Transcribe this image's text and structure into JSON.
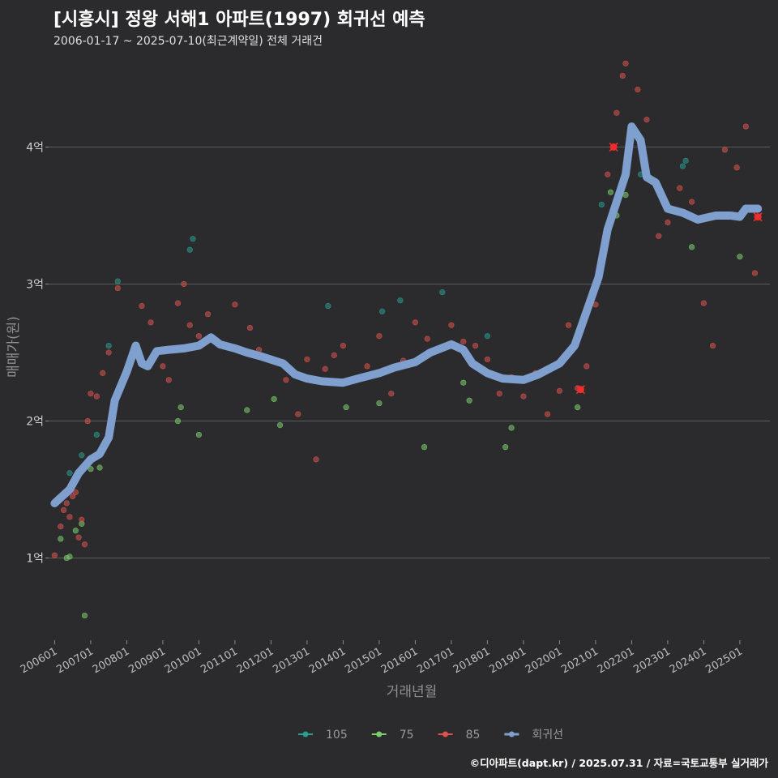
{
  "header": {
    "title": "[시흥시] 정왕 서해1 아파트(1997) 회귀선 예측",
    "subtitle": "2006-01-17 ~ 2025-07-10(최근계약일) 전체 거래건"
  },
  "footer": {
    "credit": "©디아파트(dapt.kr) / 2025.07.31 / 자료=국토교통부 실거래가"
  },
  "chart_data": {
    "type": "scatter",
    "xlabel": "거래년월",
    "ylabel": "매매가(원)",
    "x_range": [
      "2005-11",
      "2025-11"
    ],
    "ylim": [
      0.4,
      4.6
    ],
    "y_ticks": [
      1,
      2,
      3,
      4
    ],
    "y_tick_labels": [
      "1억",
      "2억",
      "3억",
      "4억"
    ],
    "x_ticks": [
      "2006-01",
      "2007-01",
      "2008-01",
      "2009-01",
      "2010-01",
      "2011-01",
      "2012-01",
      "2013-01",
      "2014-01",
      "2015-01",
      "2016-01",
      "2017-01",
      "2018-01",
      "2019-01",
      "2020-01",
      "2021-01",
      "2022-01",
      "2023-01",
      "2024-01",
      "2025-01"
    ],
    "x_tick_labels": [
      "200601",
      "200701",
      "200801",
      "200901",
      "201001",
      "201101",
      "201201",
      "201301",
      "201401",
      "201501",
      "201601",
      "201701",
      "201801",
      "201901",
      "202001",
      "202101",
      "202201",
      "202301",
      "202401",
      "202501"
    ],
    "grid": "horizontal",
    "legend_position": "bottom",
    "colors": {
      "105": "#2a9d8f",
      "75": "#7ccf6b",
      "85": "#d9534f",
      "회귀선": "#7f9fcf",
      "background": "#2b2b2d"
    },
    "series": [
      {
        "name": "105",
        "kind": "points",
        "values": [
          [
            "2006-06",
            1.62
          ],
          [
            "2006-10",
            1.75
          ],
          [
            "2007-03",
            1.9
          ],
          [
            "2007-07",
            2.55
          ],
          [
            "2007-10",
            3.02
          ],
          [
            "2009-10",
            3.25
          ],
          [
            "2009-11",
            3.33
          ],
          [
            "2013-08",
            2.84
          ],
          [
            "2015-02",
            2.8
          ],
          [
            "2015-08",
            2.88
          ],
          [
            "2016-10",
            2.94
          ],
          [
            "2018-01",
            2.62
          ],
          [
            "2021-03",
            3.58
          ],
          [
            "2022-04",
            3.8
          ],
          [
            "2023-06",
            3.86
          ],
          [
            "2023-07",
            3.9
          ]
        ]
      },
      {
        "name": "75",
        "kind": "points",
        "values": [
          [
            "2006-03",
            1.14
          ],
          [
            "2006-05",
            1.0
          ],
          [
            "2006-06",
            1.01
          ],
          [
            "2006-08",
            1.2
          ],
          [
            "2006-10",
            1.25
          ],
          [
            "2006-11",
            0.58
          ],
          [
            "2007-01",
            1.65
          ],
          [
            "2007-04",
            1.66
          ],
          [
            "2009-06",
            2.0
          ],
          [
            "2009-07",
            2.1
          ],
          [
            "2010-01",
            1.9
          ],
          [
            "2011-05",
            2.08
          ],
          [
            "2012-02",
            2.16
          ],
          [
            "2012-04",
            1.97
          ],
          [
            "2014-02",
            2.1
          ],
          [
            "2015-01",
            2.13
          ],
          [
            "2016-04",
            1.81
          ],
          [
            "2017-05",
            2.28
          ],
          [
            "2017-07",
            2.15
          ],
          [
            "2018-07",
            1.81
          ],
          [
            "2018-09",
            1.95
          ],
          [
            "2020-07",
            2.1
          ],
          [
            "2021-06",
            3.67
          ],
          [
            "2021-08",
            3.5
          ],
          [
            "2021-11",
            3.65
          ],
          [
            "2023-09",
            3.27
          ],
          [
            "2025-01",
            3.2
          ]
        ]
      },
      {
        "name": "85",
        "kind": "points",
        "values": [
          [
            "2006-01",
            1.02
          ],
          [
            "2006-03",
            1.23
          ],
          [
            "2006-04",
            1.35
          ],
          [
            "2006-05",
            1.4
          ],
          [
            "2006-06",
            1.3
          ],
          [
            "2006-07",
            1.45
          ],
          [
            "2006-08",
            1.48
          ],
          [
            "2006-09",
            1.15
          ],
          [
            "2006-10",
            1.28
          ],
          [
            "2006-11",
            1.1
          ],
          [
            "2006-12",
            2.0
          ],
          [
            "2007-01",
            2.2
          ],
          [
            "2007-03",
            2.18
          ],
          [
            "2007-05",
            2.35
          ],
          [
            "2007-07",
            2.5
          ],
          [
            "2007-10",
            2.97
          ],
          [
            "2008-06",
            2.84
          ],
          [
            "2008-09",
            2.72
          ],
          [
            "2009-01",
            2.4
          ],
          [
            "2009-03",
            2.3
          ],
          [
            "2009-06",
            2.86
          ],
          [
            "2009-08",
            3.0
          ],
          [
            "2009-10",
            2.7
          ],
          [
            "2010-01",
            2.62
          ],
          [
            "2010-04",
            2.78
          ],
          [
            "2010-08",
            2.55
          ],
          [
            "2011-01",
            2.85
          ],
          [
            "2011-06",
            2.68
          ],
          [
            "2011-09",
            2.52
          ],
          [
            "2012-01",
            2.45
          ],
          [
            "2012-06",
            2.3
          ],
          [
            "2012-10",
            2.05
          ],
          [
            "2013-01",
            2.45
          ],
          [
            "2013-04",
            1.72
          ],
          [
            "2013-07",
            2.38
          ],
          [
            "2013-10",
            2.48
          ],
          [
            "2014-01",
            2.55
          ],
          [
            "2014-05",
            2.3
          ],
          [
            "2014-09",
            2.4
          ],
          [
            "2015-01",
            2.62
          ],
          [
            "2015-05",
            2.2
          ],
          [
            "2015-09",
            2.44
          ],
          [
            "2016-01",
            2.72
          ],
          [
            "2016-05",
            2.6
          ],
          [
            "2016-09",
            2.52
          ],
          [
            "2017-01",
            2.7
          ],
          [
            "2017-05",
            2.58
          ],
          [
            "2017-09",
            2.55
          ],
          [
            "2018-01",
            2.45
          ],
          [
            "2018-05",
            2.2
          ],
          [
            "2018-09",
            2.32
          ],
          [
            "2019-01",
            2.18
          ],
          [
            "2019-05",
            2.35
          ],
          [
            "2019-09",
            2.05
          ],
          [
            "2020-01",
            2.22
          ],
          [
            "2020-04",
            2.7
          ],
          [
            "2020-07",
            2.24
          ],
          [
            "2020-10",
            2.4
          ],
          [
            "2021-01",
            2.85
          ],
          [
            "2021-05",
            3.8
          ],
          [
            "2021-08",
            4.25
          ],
          [
            "2021-10",
            4.52
          ],
          [
            "2021-11",
            4.61
          ],
          [
            "2022-03",
            4.42
          ],
          [
            "2022-06",
            4.2
          ],
          [
            "2022-10",
            3.35
          ],
          [
            "2023-01",
            3.45
          ],
          [
            "2023-05",
            3.7
          ],
          [
            "2023-09",
            3.6
          ],
          [
            "2024-01",
            2.86
          ],
          [
            "2024-04",
            2.55
          ],
          [
            "2024-08",
            3.98
          ],
          [
            "2024-12",
            3.85
          ],
          [
            "2025-03",
            4.15
          ],
          [
            "2025-06",
            3.08
          ]
        ]
      },
      {
        "name": "회귀선",
        "kind": "line",
        "values": [
          [
            "2006-01",
            1.4
          ],
          [
            "2006-03",
            1.44
          ],
          [
            "2006-06",
            1.5
          ],
          [
            "2006-09",
            1.62
          ],
          [
            "2007-01",
            1.72
          ],
          [
            "2007-04",
            1.76
          ],
          [
            "2007-07",
            1.88
          ],
          [
            "2007-09",
            2.15
          ],
          [
            "2008-01",
            2.36
          ],
          [
            "2008-04",
            2.55
          ],
          [
            "2008-06",
            2.42
          ],
          [
            "2008-08",
            2.4
          ],
          [
            "2008-11",
            2.51
          ],
          [
            "2009-03",
            2.52
          ],
          [
            "2009-08",
            2.53
          ],
          [
            "2010-01",
            2.55
          ],
          [
            "2010-05",
            2.61
          ],
          [
            "2010-08",
            2.56
          ],
          [
            "2011-01",
            2.53
          ],
          [
            "2011-05",
            2.5
          ],
          [
            "2011-10",
            2.47
          ],
          [
            "2012-05",
            2.42
          ],
          [
            "2012-09",
            2.34
          ],
          [
            "2013-01",
            2.31
          ],
          [
            "2013-06",
            2.29
          ],
          [
            "2014-01",
            2.28
          ],
          [
            "2014-06",
            2.31
          ],
          [
            "2015-01",
            2.35
          ],
          [
            "2015-06",
            2.39
          ],
          [
            "2016-01",
            2.43
          ],
          [
            "2016-06",
            2.5
          ],
          [
            "2017-01",
            2.56
          ],
          [
            "2017-05",
            2.52
          ],
          [
            "2017-08",
            2.42
          ],
          [
            "2018-01",
            2.35
          ],
          [
            "2018-06",
            2.31
          ],
          [
            "2019-01",
            2.3
          ],
          [
            "2019-06",
            2.34
          ],
          [
            "2020-01",
            2.42
          ],
          [
            "2020-06",
            2.55
          ],
          [
            "2020-10",
            2.8
          ],
          [
            "2021-02",
            3.05
          ],
          [
            "2021-05",
            3.4
          ],
          [
            "2021-08",
            3.6
          ],
          [
            "2021-11",
            3.8
          ],
          [
            "2022-01",
            4.15
          ],
          [
            "2022-04",
            4.05
          ],
          [
            "2022-06",
            3.78
          ],
          [
            "2022-09",
            3.74
          ],
          [
            "2023-01",
            3.55
          ],
          [
            "2023-06",
            3.52
          ],
          [
            "2023-11",
            3.47
          ],
          [
            "2024-05",
            3.5
          ],
          [
            "2024-10",
            3.5
          ],
          [
            "2025-01",
            3.49
          ],
          [
            "2025-03",
            3.55
          ],
          [
            "2025-07",
            3.55
          ]
        ]
      }
    ],
    "highlighted_points": [
      [
        "2020-08",
        2.23
      ],
      [
        "2021-07",
        4.0
      ],
      [
        "2025-07",
        3.49
      ]
    ]
  }
}
